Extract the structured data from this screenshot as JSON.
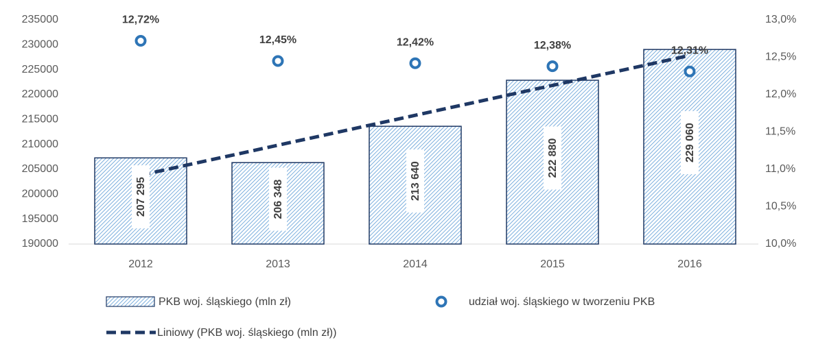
{
  "chart_data": {
    "type": "bar",
    "categories": [
      "2012",
      "2013",
      "2014",
      "2015",
      "2016"
    ],
    "series": [
      {
        "name": "PKB woj. śląskiego (mln zł)",
        "type": "bar",
        "color": "#2e75b6",
        "border": "#1f3864",
        "values": [
          207295,
          206348,
          213640,
          222880,
          229060
        ],
        "value_labels": [
          "207 295",
          "206 348",
          "213 640",
          "222 880",
          "229 060"
        ]
      },
      {
        "name": "udział woj. śląskiego w tworzeniu PKB",
        "type": "scatter",
        "axis": "y2",
        "color": "#2e75b6",
        "values": [
          12.72,
          12.45,
          12.42,
          12.38,
          12.31
        ],
        "value_labels": [
          "12,72%",
          "12,45%",
          "12,42%",
          "12,38%",
          "12,31%"
        ]
      },
      {
        "name": "Liniowy (PKB woj. śląskiego (mln zł))",
        "type": "line",
        "dashed": true,
        "color": "#1f3864",
        "values": [
          203832,
          209838,
          215845,
          221851,
          227857
        ]
      }
    ],
    "ylim": [
      190000,
      235000
    ],
    "yticks": [
      190000,
      195000,
      200000,
      205000,
      210000,
      215000,
      220000,
      225000,
      230000,
      235000
    ],
    "y2lim": [
      10,
      13
    ],
    "y2ticks": [
      {
        "value": 10,
        "label": "10,0%"
      },
      {
        "value": 10.5,
        "label": "10,5%"
      },
      {
        "value": 11,
        "label": "11,0%"
      },
      {
        "value": 11.5,
        "label": "11,5%"
      },
      {
        "value": 12,
        "label": "12,0%"
      },
      {
        "value": 12.5,
        "label": "12,5%"
      },
      {
        "value": 13,
        "label": "13,0%"
      }
    ],
    "grid": false
  }
}
